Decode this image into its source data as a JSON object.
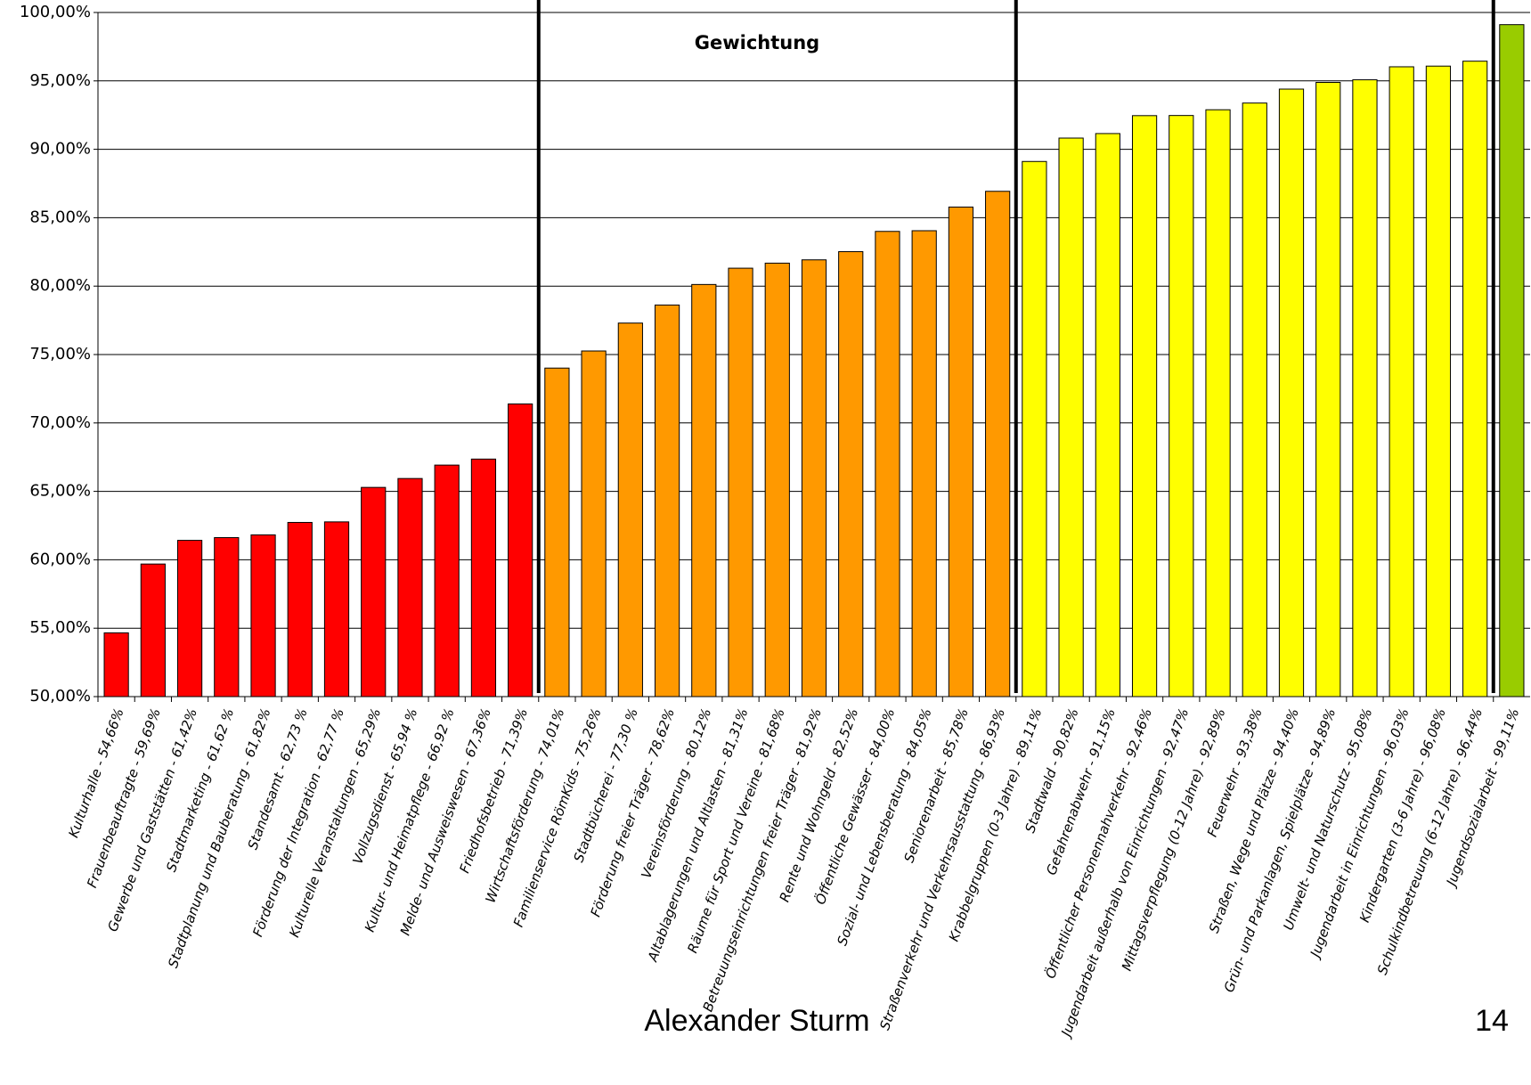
{
  "chart_data": {
    "type": "bar",
    "title": "Gewichtung",
    "categories": [
      "Kulturhalle - 54,66%",
      "Frauenbeauftragte - 59,69%",
      "Gewerbe und Gaststätten - 61,42%",
      "Stadtmarketing - 61,62 %",
      "Stadtplanung und Bauberatung - 61,82%",
      "Standesamt - 62,73 %",
      "Förderung der Integration - 62,77 %",
      "Kulturelle Veranstaltungen - 65,29%",
      "Vollzugsdienst - 65,94 %",
      "Kultur- und Heimatpflege - 66,92 %",
      "Melde- und Ausweiswesen - 67,36%",
      "Friedhofsbetrieb - 71,39%",
      "Wirtschaftsförderung - 74,01%",
      "Familienservice RömKids - 75,26%",
      "Stadtbücherei - 77,30 %",
      "Förderung freier Träger - 78,62%",
      "Vereinsförderung - 80,12%",
      "Altablagerungen und Altlasten - 81,31%",
      "Räume für Sport und Vereine - 81,68%",
      "Betreuungseinrichtungen freier Träger - 81,92%",
      "Rente und Wohngeld - 82,52%",
      "Öffentliche Gewässer - 84,00%",
      "Sozial- und Lebensberatung - 84,05%",
      "Seniorenarbeit - 85,78%",
      "Straßenverkehr und Verkehrsausstattung - 86,93%",
      "Krabbelgruppen (0-3 Jahre) - 89,11%",
      "Stadtwald - 90,82%",
      "Gefahrenabwehr - 91,15%",
      "Öffentlicher Personennahverkehr - 92,46%",
      "Jugendarbeit außerhalb von Einrichtungen - 92,47%",
      "Mittagsverpflegung (0-12 Jahre) - 92,89%",
      "Feuerwehr - 93,38%",
      "Straßen, Wege und Plätze - 94,40%",
      "Grün- und Parkanlagen, Spielplätze - 94,89%",
      "Umwelt- und Naturschutz - 95,08%",
      "Jugendarbeit in Einrichtungen - 96,03%",
      "Kindergarten (3-6 Jahre) - 96,08%",
      "Schulkindbetreuung (6-12 Jahre) - 96,44%",
      "Jugendsozialarbeit - 99,11%"
    ],
    "values": [
      54.66,
      59.69,
      61.42,
      61.62,
      61.82,
      62.73,
      62.77,
      65.29,
      65.94,
      66.92,
      67.36,
      71.39,
      74.01,
      75.26,
      77.3,
      78.62,
      80.12,
      81.31,
      81.68,
      81.92,
      82.52,
      84.0,
      84.05,
      85.78,
      86.93,
      89.11,
      90.82,
      91.15,
      92.46,
      92.47,
      92.89,
      93.38,
      94.4,
      94.89,
      95.08,
      96.03,
      96.08,
      96.44,
      99.11
    ],
    "colors": [
      "#ff0000",
      "#ff0000",
      "#ff0000",
      "#ff0000",
      "#ff0000",
      "#ff0000",
      "#ff0000",
      "#ff0000",
      "#ff0000",
      "#ff0000",
      "#ff0000",
      "#ff0000",
      "#ff9900",
      "#ff9900",
      "#ff9900",
      "#ff9900",
      "#ff9900",
      "#ff9900",
      "#ff9900",
      "#ff9900",
      "#ff9900",
      "#ff9900",
      "#ff9900",
      "#ff9900",
      "#ff9900",
      "#ffff00",
      "#ffff00",
      "#ffff00",
      "#ffff00",
      "#ffff00",
      "#ffff00",
      "#ffff00",
      "#ffff00",
      "#ffff00",
      "#ffff00",
      "#ffff00",
      "#ffff00",
      "#ffff00",
      "#99cc00"
    ],
    "ylim": [
      50,
      100
    ],
    "yticks": [
      {
        "value": 50,
        "label": "50,00%"
      },
      {
        "value": 55,
        "label": "55,00%"
      },
      {
        "value": 60,
        "label": "60,00%"
      },
      {
        "value": 65,
        "label": "65,00%"
      },
      {
        "value": 70,
        "label": "70,00%"
      },
      {
        "value": 75,
        "label": "75,00%"
      },
      {
        "value": 80,
        "label": "80,00%"
      },
      {
        "value": 85,
        "label": "85,00%"
      },
      {
        "value": 90,
        "label": "90,00%"
      },
      {
        "value": 95,
        "label": "95,00%"
      },
      {
        "value": 100,
        "label": "100,00%"
      }
    ],
    "grid": true,
    "author": "Alexander Sturm",
    "page_number": "14"
  }
}
